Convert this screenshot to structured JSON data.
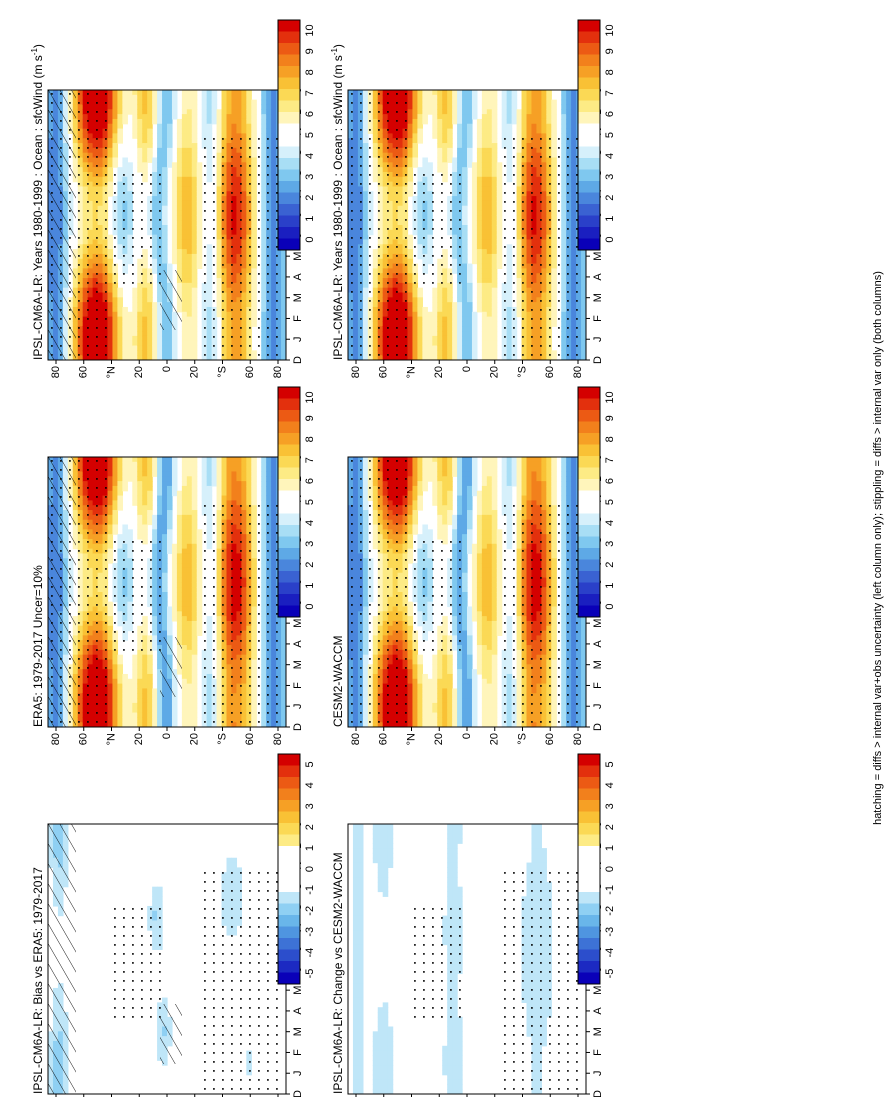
{
  "footnote": "hatching = diffs > internal var+obs uncertainty (left column only); stippling = diffs > internal var only (both columns)",
  "chart_data": [
    {
      "type": "heatmap",
      "id": "left-top",
      "title": "IPSL-CM6A-LR: Years 1980-1999 : Ocean : sfcWind (m s",
      "title_sup": "-1",
      "title_close": ")",
      "months": [
        "D",
        "J",
        "F",
        "M",
        "A",
        "M",
        "J",
        "J",
        "A",
        "S",
        "O",
        "N",
        "D",
        "J"
      ],
      "lat_ticks": [
        "80",
        "60",
        "°N",
        "20",
        "0",
        "20",
        "°S",
        "60",
        "80"
      ],
      "colorbar": {
        "labels": [
          "10",
          "9",
          "8",
          "7",
          "6",
          "5",
          "4",
          "3",
          "2",
          "1",
          "0"
        ],
        "range": [
          0,
          10
        ]
      },
      "mode": "abs",
      "hatched": true
    },
    {
      "type": "heatmap",
      "id": "right-top",
      "title": "IPSL-CM6A-LR: Years 1980-1999 : Ocean : sfcWind (m s",
      "title_sup": "-1",
      "title_close": ")",
      "months": [
        "D",
        "J",
        "F",
        "M",
        "A",
        "M",
        "J",
        "J",
        "A",
        "S",
        "O",
        "N",
        "D",
        "J"
      ],
      "lat_ticks": [
        "80",
        "60",
        "°N",
        "20",
        "0",
        "20",
        "°S",
        "60",
        "80"
      ],
      "colorbar": {
        "labels": [
          "10",
          "9",
          "8",
          "7",
          "6",
          "5",
          "4",
          "3",
          "2",
          "1",
          "0"
        ],
        "range": [
          0,
          10
        ]
      },
      "mode": "abs",
      "hatched": false
    },
    {
      "type": "heatmap",
      "id": "left-mid",
      "title": "ERA5: 1979-2017 Uncer=10%",
      "months": [
        "D",
        "J",
        "F",
        "M",
        "A",
        "M",
        "J",
        "J",
        "A",
        "S",
        "O",
        "N",
        "D",
        "J"
      ],
      "lat_ticks": [
        "80",
        "60",
        "°N",
        "20",
        "0",
        "20",
        "°S",
        "60",
        "80"
      ],
      "colorbar": {
        "labels": [
          "10",
          "9",
          "8",
          "7",
          "6",
          "5",
          "4",
          "3",
          "2",
          "1",
          "0"
        ],
        "range": [
          0,
          10
        ]
      },
      "mode": "obs",
      "hatched": true
    },
    {
      "type": "heatmap",
      "id": "right-mid",
      "title": "CESM2-WACCM",
      "months": [
        "D",
        "J",
        "F",
        "M",
        "A",
        "M",
        "J",
        "J",
        "A",
        "S",
        "O",
        "N",
        "D",
        "J"
      ],
      "lat_ticks": [
        "80",
        "60",
        "°N",
        "20",
        "0",
        "20",
        "°S",
        "60",
        "80"
      ],
      "colorbar": {
        "labels": [
          "10",
          "9",
          "8",
          "7",
          "6",
          "5",
          "4",
          "3",
          "2",
          "1",
          "0"
        ],
        "range": [
          0,
          10
        ]
      },
      "mode": "obs",
      "hatched": false
    },
    {
      "type": "heatmap",
      "id": "left-bot",
      "title": "IPSL-CM6A-LR: Bias vs ERA5: 1979-2017",
      "months": [
        "D",
        "J",
        "F",
        "M",
        "A",
        "M",
        "J",
        "J",
        "A",
        "S",
        "O",
        "N",
        "D",
        "J"
      ],
      "lat_ticks": [
        "80",
        "60",
        "°N",
        "20",
        "0",
        "20",
        "°S",
        "60",
        "80"
      ],
      "colorbar": {
        "labels": [
          "5",
          "4",
          "3",
          "2",
          "1",
          "0",
          "-1",
          "-2",
          "-3",
          "-4",
          "-5"
        ],
        "range": [
          -5,
          5
        ]
      },
      "mode": "diff",
      "hatched": true
    },
    {
      "type": "heatmap",
      "id": "right-bot",
      "title": "IPSL-CM6A-LR: Change vs CESM2-WACCM",
      "months": [
        "D",
        "J",
        "F",
        "M",
        "A",
        "M",
        "J",
        "J",
        "A",
        "S",
        "O",
        "N",
        "D",
        "J"
      ],
      "lat_ticks": [
        "80",
        "60",
        "°N",
        "20",
        "0",
        "20",
        "°S",
        "60",
        "80"
      ],
      "colorbar": {
        "labels": [
          "5",
          "4",
          "3",
          "2",
          "1",
          "0",
          "-1",
          "-2",
          "-3",
          "-4",
          "-5"
        ],
        "range": [
          -5,
          5
        ]
      },
      "mode": "diff2",
      "hatched": false
    }
  ]
}
